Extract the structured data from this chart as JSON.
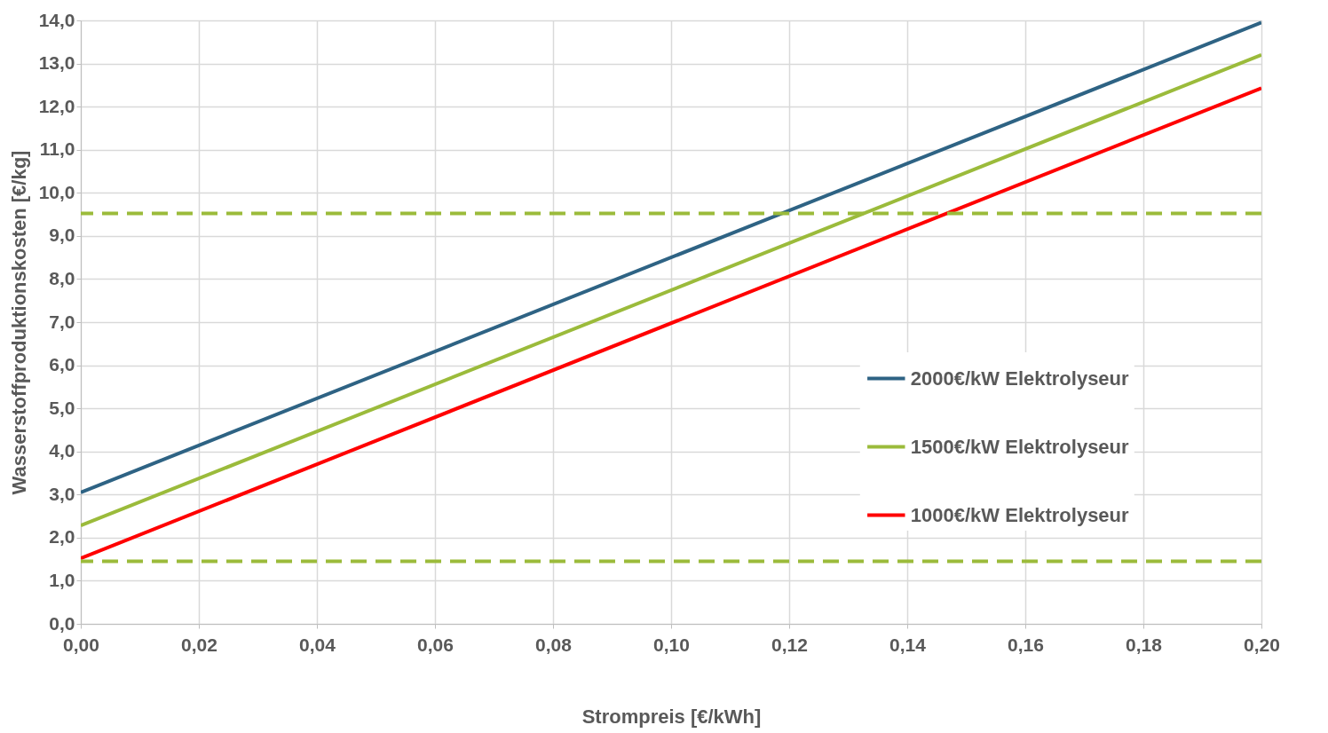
{
  "chart_data": {
    "type": "line",
    "xlabel": "Strompreis [€/kWh]",
    "ylabel": "Wasserstoffproduktionskosten [€/kg]",
    "x": [
      0.0,
      0.2
    ],
    "series": [
      {
        "name": "2000€/kW Elektrolyseur",
        "color": "#2e6384",
        "values": [
          3.05,
          13.95
        ]
      },
      {
        "name": "1500€/kW Elektrolyseur",
        "color": "#9bbb3b",
        "values": [
          2.28,
          13.2
        ]
      },
      {
        "name": "1000€/kW Elektrolyseur",
        "color": "#ff0000",
        "values": [
          1.52,
          12.43
        ]
      }
    ],
    "xlim": [
      0.0,
      0.2
    ],
    "xticks": [
      {
        "value": 0.0,
        "label": "0,00"
      },
      {
        "value": 0.02,
        "label": "0,02"
      },
      {
        "value": 0.04,
        "label": "0,04"
      },
      {
        "value": 0.06,
        "label": "0,06"
      },
      {
        "value": 0.08,
        "label": "0,08"
      },
      {
        "value": 0.1,
        "label": "0,10"
      },
      {
        "value": 0.12,
        "label": "0,12"
      },
      {
        "value": 0.14,
        "label": "0,14"
      },
      {
        "value": 0.16,
        "label": "0,16"
      },
      {
        "value": 0.18,
        "label": "0,18"
      },
      {
        "value": 0.2,
        "label": "0,20"
      }
    ],
    "ylim": [
      0,
      14
    ],
    "yticks": [
      {
        "value": 0,
        "label": "0,0"
      },
      {
        "value": 1,
        "label": "1,0"
      },
      {
        "value": 2,
        "label": "2,0"
      },
      {
        "value": 3,
        "label": "3,0"
      },
      {
        "value": 4,
        "label": "4,0"
      },
      {
        "value": 5,
        "label": "5,0"
      },
      {
        "value": 6,
        "label": "6,0"
      },
      {
        "value": 7,
        "label": "7,0"
      },
      {
        "value": 8,
        "label": "8,0"
      },
      {
        "value": 9,
        "label": "9,0"
      },
      {
        "value": 10,
        "label": "10,0"
      },
      {
        "value": 11,
        "label": "11,0"
      },
      {
        "value": 12,
        "label": "12,0"
      },
      {
        "value": 13,
        "label": "13,0"
      },
      {
        "value": 14,
        "label": "14,0"
      }
    ],
    "ref_lines": [
      {
        "axis": "y",
        "value": 9.52,
        "color": "#9bbb3b",
        "line_style": "dashed"
      },
      {
        "axis": "y",
        "value": 1.45,
        "color": "#9bbb3b",
        "line_style": "dashed"
      }
    ],
    "grid": true,
    "legend": "right",
    "marker": "none",
    "line_style": "solid"
  }
}
